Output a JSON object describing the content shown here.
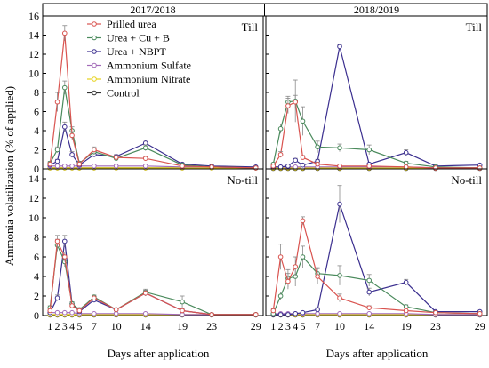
{
  "figure": {
    "ylabel": "Ammonia volatilization (% of applied)",
    "xlabel": "Days after application",
    "legend": [
      "Prilled urea",
      "Urea + Cu + B",
      "Urea + NBPT",
      "Ammonium Sulfate",
      "Ammonium Nitrate",
      "Control"
    ],
    "colors": {
      "Prilled urea": "#d9534f",
      "Urea + Cu + B": "#4a8a5c",
      "Urea + NBPT": "#3b2f8f",
      "Ammonium Sulfate": "#a26ab8",
      "Ammonium Nitrate": "#e6d21c",
      "Control": "#333333"
    }
  },
  "chart_data": [
    {
      "type": "line",
      "year": "2017/2018",
      "tillage": "Till",
      "x_ticks": [],
      "ylim": [
        0,
        16
      ],
      "y_ticks": [
        0,
        2,
        4,
        6,
        8,
        10,
        12,
        14,
        16
      ],
      "x": [
        1,
        2,
        3,
        4,
        5,
        7,
        10,
        14,
        19,
        23,
        29
      ],
      "series": [
        {
          "name": "Prilled urea",
          "values": [
            0.5,
            7.0,
            14.2,
            3.5,
            0.5,
            2.0,
            1.2,
            1.1,
            0.3,
            0.2,
            0.1
          ],
          "errors": [
            0.2,
            1.0,
            0.8,
            0.4,
            0.2,
            0.3,
            0.2,
            0.2,
            0.1,
            0.1,
            0.1
          ]
        },
        {
          "name": "Urea + Cu + B",
          "values": [
            0.6,
            2.0,
            8.5,
            4.0,
            0.6,
            1.8,
            1.1,
            2.2,
            0.4,
            0.2,
            0.1
          ],
          "errors": [
            0.2,
            0.3,
            0.7,
            0.4,
            0.2,
            0.3,
            0.2,
            0.3,
            0.1,
            0.1,
            0.1
          ]
        },
        {
          "name": "Urea + NBPT",
          "values": [
            0.4,
            0.8,
            4.4,
            1.5,
            0.4,
            1.5,
            1.3,
            2.7,
            0.5,
            0.3,
            0.2
          ],
          "errors": [
            0.1,
            0.2,
            0.5,
            0.3,
            0.1,
            0.2,
            0.2,
            0.3,
            0.1,
            0.1,
            0.1
          ]
        },
        {
          "name": "Ammonium Sulfate",
          "values": [
            0.3,
            0.3,
            0.3,
            0.3,
            0.3,
            0.3,
            0.3,
            0.3,
            0.2,
            0.2,
            0.1
          ],
          "errors": [
            0.1,
            0.1,
            0.1,
            0.1,
            0.1,
            0.1,
            0.1,
            0.1,
            0.1,
            0.1,
            0.1
          ]
        },
        {
          "name": "Ammonium Nitrate",
          "values": [
            0.1,
            0.1,
            0.1,
            0.1,
            0.1,
            0.1,
            0.1,
            0.1,
            0.1,
            0.1,
            0.1
          ],
          "errors": [
            0.05,
            0.05,
            0.05,
            0.05,
            0.05,
            0.05,
            0.05,
            0.05,
            0.05,
            0.05,
            0.05
          ]
        },
        {
          "name": "Control",
          "values": [
            0.1,
            0.1,
            0.1,
            0.1,
            0.1,
            0.1,
            0.1,
            0.1,
            0.1,
            0.1,
            0.1
          ],
          "errors": [
            0.05,
            0.05,
            0.05,
            0.05,
            0.05,
            0.05,
            0.05,
            0.05,
            0.05,
            0.05,
            0.05
          ]
        }
      ]
    },
    {
      "type": "line",
      "year": "2018/2019",
      "tillage": "Till",
      "x_ticks": [],
      "ylim": [
        0,
        16
      ],
      "y_ticks": [],
      "x": [
        1,
        2,
        3,
        4,
        5,
        7,
        10,
        14,
        19,
        23,
        29
      ],
      "series": [
        {
          "name": "Prilled urea",
          "values": [
            0.3,
            1.5,
            6.6,
            7.0,
            1.2,
            0.5,
            0.3,
            0.3,
            0.2,
            0.1,
            0.1
          ],
          "errors": [
            0.1,
            0.3,
            0.8,
            0.7,
            0.2,
            0.2,
            0.1,
            0.1,
            0.1,
            0.1,
            0.1
          ]
        },
        {
          "name": "Urea + Cu + B",
          "values": [
            0.5,
            4.2,
            7.0,
            7.1,
            5.0,
            2.3,
            2.2,
            2.0,
            0.6,
            0.2,
            0.1
          ],
          "errors": [
            0.1,
            0.5,
            0.6,
            2.2,
            1.5,
            0.6,
            0.4,
            0.5,
            0.2,
            0.1,
            0.1
          ]
        },
        {
          "name": "Urea + NBPT",
          "values": [
            0.2,
            0.2,
            0.3,
            0.9,
            0.4,
            0.8,
            12.8,
            0.5,
            1.7,
            0.3,
            0.4
          ],
          "errors": [
            0.1,
            0.1,
            0.1,
            0.2,
            0.1,
            0.2,
            0.2,
            0.1,
            0.3,
            0.1,
            0.1
          ]
        },
        {
          "name": "Ammonium Sulfate",
          "values": [
            0.2,
            0.2,
            0.2,
            0.2,
            0.2,
            0.2,
            0.2,
            0.2,
            0.2,
            0.1,
            0.1
          ],
          "errors": [
            0.1,
            0.1,
            0.1,
            0.1,
            0.1,
            0.1,
            0.1,
            0.1,
            0.1,
            0.1,
            0.1
          ]
        },
        {
          "name": "Ammonium Nitrate",
          "values": [
            0.1,
            0.1,
            0.1,
            0.1,
            0.1,
            0.1,
            0.1,
            0.1,
            0.1,
            0.1,
            0.1
          ],
          "errors": [
            0.05,
            0.05,
            0.05,
            0.05,
            0.05,
            0.05,
            0.05,
            0.05,
            0.05,
            0.05,
            0.05
          ]
        },
        {
          "name": "Control",
          "values": [
            0.05,
            0.05,
            0.05,
            0.05,
            0.05,
            0.05,
            0.05,
            0.05,
            0.05,
            0.05,
            0.05
          ],
          "errors": [
            0.05,
            0.05,
            0.05,
            0.05,
            0.05,
            0.05,
            0.05,
            0.05,
            0.05,
            0.05,
            0.05
          ]
        }
      ]
    },
    {
      "type": "line",
      "year": "2017/2018",
      "tillage": "No-till",
      "x_ticks": [
        "1",
        "2",
        "3",
        "4",
        "5",
        "7",
        "10",
        "14",
        "19",
        "23",
        "29"
      ],
      "ylim": [
        0,
        15
      ],
      "y_ticks": [
        0,
        2,
        4,
        6,
        8,
        10,
        12,
        14
      ],
      "x": [
        1,
        2,
        3,
        4,
        5,
        7,
        10,
        14,
        19,
        23,
        29
      ],
      "series": [
        {
          "name": "Prilled urea",
          "values": [
            0.5,
            7.6,
            6.0,
            1.0,
            0.5,
            1.8,
            0.6,
            2.3,
            0.5,
            0.1,
            0.1
          ],
          "errors": [
            0.2,
            0.6,
            0.5,
            0.2,
            0.2,
            0.2,
            0.1,
            0.3,
            0.2,
            0.1,
            0.1
          ]
        },
        {
          "name": "Urea + Cu + B",
          "values": [
            0.8,
            7.2,
            5.5,
            1.2,
            0.6,
            1.9,
            0.6,
            2.4,
            1.4,
            0.1,
            0.1
          ],
          "errors": [
            0.2,
            0.6,
            0.5,
            0.2,
            0.2,
            0.2,
            0.1,
            0.3,
            0.6,
            0.1,
            0.1
          ]
        },
        {
          "name": "Urea + NBPT",
          "values": [
            0.3,
            1.8,
            7.6,
            1.2,
            0.4,
            1.6,
            0.6,
            2.3,
            0.5,
            0.1,
            0.1
          ],
          "errors": [
            0.1,
            0.3,
            0.6,
            0.2,
            0.1,
            0.2,
            0.1,
            0.3,
            0.1,
            0.1,
            0.1
          ]
        },
        {
          "name": "Ammonium Sulfate",
          "values": [
            0.3,
            0.3,
            0.3,
            0.3,
            0.2,
            0.2,
            0.2,
            0.2,
            0.1,
            0.1,
            0.1
          ],
          "errors": [
            0.1,
            0.1,
            0.1,
            0.1,
            0.1,
            0.1,
            0.1,
            0.1,
            0.1,
            0.1,
            0.1
          ]
        },
        {
          "name": "Ammonium Nitrate",
          "values": [
            0.1,
            0.1,
            0.1,
            0.1,
            0.1,
            0.1,
            0.1,
            0.1,
            0.1,
            0.1,
            0.1
          ],
          "errors": [
            0.05,
            0.05,
            0.05,
            0.05,
            0.05,
            0.05,
            0.05,
            0.05,
            0.05,
            0.05,
            0.05
          ]
        },
        {
          "name": "Control",
          "values": [
            0.05,
            0.05,
            0.05,
            0.05,
            0.05,
            0.05,
            0.05,
            0.05,
            0.05,
            0.05,
            0.05
          ],
          "errors": [
            0.05,
            0.05,
            0.05,
            0.05,
            0.05,
            0.05,
            0.05,
            0.05,
            0.05,
            0.05,
            0.05
          ]
        }
      ]
    },
    {
      "type": "line",
      "year": "2018/2019",
      "tillage": "No-till",
      "x_ticks": [
        "1",
        "2",
        "3",
        "4",
        "5",
        "7",
        "10",
        "14",
        "19",
        "23",
        "29"
      ],
      "ylim": [
        0,
        15
      ],
      "y_ticks": [],
      "x": [
        1,
        2,
        3,
        4,
        5,
        7,
        10,
        14,
        19,
        23,
        29
      ],
      "series": [
        {
          "name": "Prilled urea",
          "values": [
            0.5,
            6.0,
            3.5,
            5.0,
            9.7,
            4.0,
            1.8,
            0.8,
            0.5,
            0.3,
            0.2
          ],
          "errors": [
            0.2,
            1.3,
            0.8,
            1.0,
            0.4,
            0.8,
            0.4,
            0.2,
            0.1,
            0.1,
            0.1
          ]
        },
        {
          "name": "Urea + Cu + B",
          "values": [
            0.2,
            2.0,
            3.8,
            4.0,
            6.0,
            4.3,
            4.1,
            3.6,
            0.9,
            0.3,
            0.2
          ],
          "errors": [
            0.1,
            0.4,
            0.9,
            1.0,
            1.1,
            0.6,
            1.0,
            0.6,
            0.2,
            0.1,
            0.1
          ]
        },
        {
          "name": "Urea + NBPT",
          "values": [
            0.1,
            0.1,
            0.1,
            0.2,
            0.3,
            0.6,
            11.4,
            2.4,
            3.4,
            0.4,
            0.4
          ],
          "errors": [
            0.05,
            0.05,
            0.05,
            0.1,
            0.1,
            0.2,
            1.9,
            0.4,
            0.3,
            0.1,
            0.1
          ]
        },
        {
          "name": "Ammonium Sulfate",
          "values": [
            0.2,
            0.2,
            0.2,
            0.2,
            0.2,
            0.2,
            0.2,
            0.2,
            0.2,
            0.1,
            0.1
          ],
          "errors": [
            0.1,
            0.1,
            0.1,
            0.1,
            0.1,
            0.1,
            0.1,
            0.1,
            0.1,
            0.1,
            0.1
          ]
        },
        {
          "name": "Ammonium Nitrate",
          "values": [
            0.1,
            0.1,
            0.1,
            0.1,
            0.1,
            0.1,
            0.1,
            0.1,
            0.1,
            0.1,
            0.1
          ],
          "errors": [
            0.05,
            0.05,
            0.05,
            0.05,
            0.05,
            0.05,
            0.05,
            0.05,
            0.05,
            0.05,
            0.05
          ]
        },
        {
          "name": "Control",
          "values": [
            0.05,
            0.05,
            0.05,
            0.05,
            0.05,
            0.05,
            0.05,
            0.05,
            0.05,
            0.05,
            0.05
          ],
          "errors": [
            0.05,
            0.05,
            0.05,
            0.05,
            0.05,
            0.05,
            0.05,
            0.05,
            0.05,
            0.05,
            0.05
          ]
        }
      ]
    }
  ]
}
